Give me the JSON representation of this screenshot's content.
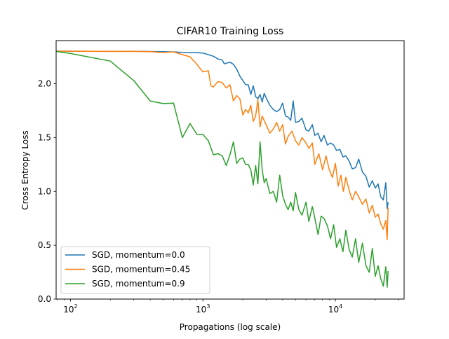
{
  "chart_data": {
    "type": "line",
    "title": "CIFAR10 Training Loss",
    "xlabel": "Propagations (log scale)",
    "ylabel": "Cross Entropy Loss",
    "x_scale": "log",
    "xlim": [
      78,
      33000
    ],
    "ylim": [
      0.0,
      2.4
    ],
    "x_ticks": [
      {
        "value": 100,
        "base": "10",
        "exp": "2"
      },
      {
        "value": 1000,
        "base": "10",
        "exp": "3"
      },
      {
        "value": 10000,
        "base": "10",
        "exp": "4"
      }
    ],
    "y_ticks": [
      {
        "value": 0.0,
        "label": "0.0"
      },
      {
        "value": 0.5,
        "label": "0.5"
      },
      {
        "value": 1.0,
        "label": "1.0"
      },
      {
        "value": 1.5,
        "label": "1.5"
      },
      {
        "value": 2.0,
        "label": "2.0"
      }
    ],
    "grid": false,
    "legend_position": "lower-left",
    "series": [
      {
        "name": "SGD, momentum=0.0",
        "color": "#1f77b4",
        "points": [
          [
            78,
            2.302
          ],
          [
            100,
            2.302
          ],
          [
            200,
            2.3
          ],
          [
            300,
            2.301
          ],
          [
            400,
            2.299
          ],
          [
            500,
            2.297
          ],
          [
            600,
            2.295
          ],
          [
            700,
            2.291
          ],
          [
            800,
            2.289
          ],
          [
            900,
            2.288
          ],
          [
            1000,
            2.285
          ],
          [
            1100,
            2.27
          ],
          [
            1200,
            2.255
          ],
          [
            1300,
            2.23
          ],
          [
            1400,
            2.22
          ],
          [
            1450,
            2.185
          ],
          [
            1500,
            2.19
          ],
          [
            1600,
            2.2
          ],
          [
            1700,
            2.18
          ],
          [
            1800,
            2.135
          ],
          [
            1900,
            2.07
          ],
          [
            2000,
            2.03
          ],
          [
            2100,
            1.99
          ],
          [
            2200,
            1.99
          ],
          [
            2300,
            1.9
          ],
          [
            2400,
            1.98
          ],
          [
            2500,
            1.88
          ],
          [
            2600,
            1.86
          ],
          [
            2700,
            1.9
          ],
          [
            2800,
            1.83
          ],
          [
            2900,
            1.91
          ],
          [
            3000,
            1.87
          ],
          [
            3200,
            1.8
          ],
          [
            3400,
            1.76
          ],
          [
            3600,
            1.74
          ],
          [
            3800,
            1.76
          ],
          [
            4000,
            1.82
          ],
          [
            4200,
            1.7
          ],
          [
            4400,
            1.69
          ],
          [
            4600,
            1.66
          ],
          [
            4800,
            1.84
          ],
          [
            5000,
            1.64
          ],
          [
            5300,
            1.65
          ],
          [
            5600,
            1.68
          ],
          [
            6000,
            1.57
          ],
          [
            6300,
            1.56
          ],
          [
            6700,
            1.62
          ],
          [
            7000,
            1.52
          ],
          [
            7400,
            1.54
          ],
          [
            7800,
            1.46
          ],
          [
            8200,
            1.52
          ],
          [
            8700,
            1.43
          ],
          [
            9200,
            1.45
          ],
          [
            9700,
            1.43
          ],
          [
            10200,
            1.38
          ],
          [
            10800,
            1.39
          ],
          [
            11400,
            1.32
          ],
          [
            12000,
            1.33
          ],
          [
            12700,
            1.28
          ],
          [
            13400,
            1.21
          ],
          [
            14200,
            1.22
          ],
          [
            15000,
            1.3
          ],
          [
            16000,
            1.18
          ],
          [
            17000,
            1.14
          ],
          [
            18000,
            1.04
          ],
          [
            19000,
            1.1
          ],
          [
            20000,
            1.03
          ],
          [
            21000,
            1.07
          ],
          [
            22000,
            0.95
          ],
          [
            23000,
            0.92
          ],
          [
            24000,
            1.08
          ],
          [
            24600,
            0.84
          ],
          [
            25000,
            0.9
          ]
        ]
      },
      {
        "name": "SGD, momentum=0.45",
        "color": "#ff7f0e",
        "points": [
          [
            78,
            2.302
          ],
          [
            100,
            2.302
          ],
          [
            200,
            2.3
          ],
          [
            300,
            2.3
          ],
          [
            400,
            2.297
          ],
          [
            500,
            2.29
          ],
          [
            600,
            2.295
          ],
          [
            700,
            2.27
          ],
          [
            800,
            2.25
          ],
          [
            900,
            2.18
          ],
          [
            1000,
            2.11
          ],
          [
            1100,
            2.12
          ],
          [
            1150,
            1.98
          ],
          [
            1200,
            1.97
          ],
          [
            1300,
            2.02
          ],
          [
            1400,
            2.01
          ],
          [
            1500,
            1.96
          ],
          [
            1600,
            1.99
          ],
          [
            1700,
            1.84
          ],
          [
            1800,
            1.89
          ],
          [
            1900,
            1.86
          ],
          [
            2000,
            1.71
          ],
          [
            2100,
            1.76
          ],
          [
            2200,
            1.73
          ],
          [
            2300,
            1.8
          ],
          [
            2400,
            1.65
          ],
          [
            2500,
            1.7
          ],
          [
            2600,
            1.85
          ],
          [
            2700,
            1.6
          ],
          [
            2800,
            1.7
          ],
          [
            3000,
            1.62
          ],
          [
            3200,
            1.54
          ],
          [
            3400,
            1.58
          ],
          [
            3600,
            1.64
          ],
          [
            3800,
            1.56
          ],
          [
            4000,
            1.62
          ],
          [
            4200,
            1.44
          ],
          [
            4400,
            1.51
          ],
          [
            4700,
            1.56
          ],
          [
            5000,
            1.47
          ],
          [
            5300,
            1.43
          ],
          [
            5600,
            1.5
          ],
          [
            6000,
            1.45
          ],
          [
            6300,
            1.4
          ],
          [
            6700,
            1.45
          ],
          [
            7000,
            1.25
          ],
          [
            7500,
            1.35
          ],
          [
            8000,
            1.2
          ],
          [
            8500,
            1.33
          ],
          [
            9000,
            1.2
          ],
          [
            9500,
            1.13
          ],
          [
            10000,
            1.26
          ],
          [
            10500,
            1.05
          ],
          [
            11000,
            1.15
          ],
          [
            11500,
            1.0
          ],
          [
            12000,
            1.13
          ],
          [
            12700,
            1.01
          ],
          [
            13400,
            0.92
          ],
          [
            14200,
            1.0
          ],
          [
            15000,
            0.95
          ],
          [
            16000,
            0.88
          ],
          [
            17000,
            0.93
          ],
          [
            18000,
            0.8
          ],
          [
            19000,
            0.87
          ],
          [
            20000,
            0.76
          ],
          [
            21000,
            0.79
          ],
          [
            22000,
            0.7
          ],
          [
            23000,
            0.65
          ],
          [
            24000,
            0.73
          ],
          [
            24600,
            0.55
          ],
          [
            25000,
            0.85
          ]
        ]
      },
      {
        "name": "SGD, momentum=0.9",
        "color": "#2ca02c",
        "points": [
          [
            78,
            2.3
          ],
          [
            100,
            2.28
          ],
          [
            200,
            2.21
          ],
          [
            300,
            2.03
          ],
          [
            400,
            1.84
          ],
          [
            500,
            1.815
          ],
          [
            600,
            1.82
          ],
          [
            700,
            1.5
          ],
          [
            800,
            1.63
          ],
          [
            900,
            1.53
          ],
          [
            1000,
            1.53
          ],
          [
            1100,
            1.47
          ],
          [
            1200,
            1.34
          ],
          [
            1300,
            1.35
          ],
          [
            1400,
            1.33
          ],
          [
            1500,
            1.24
          ],
          [
            1600,
            1.34
          ],
          [
            1700,
            1.46
          ],
          [
            1800,
            1.26
          ],
          [
            1900,
            1.3
          ],
          [
            2000,
            1.31
          ],
          [
            2100,
            1.25
          ],
          [
            2200,
            1.25
          ],
          [
            2300,
            1.2
          ],
          [
            2400,
            1.06
          ],
          [
            2500,
            1.24
          ],
          [
            2600,
            1.07
          ],
          [
            2700,
            1.46
          ],
          [
            2800,
            1.2
          ],
          [
            2900,
            1.08
          ],
          [
            3000,
            1.12
          ],
          [
            3200,
            0.98
          ],
          [
            3400,
            1.0
          ],
          [
            3600,
            0.9
          ],
          [
            3800,
            1.15
          ],
          [
            4000,
            0.96
          ],
          [
            4200,
            0.88
          ],
          [
            4400,
            0.83
          ],
          [
            4600,
            0.9
          ],
          [
            4800,
            0.82
          ],
          [
            5000,
            0.99
          ],
          [
            5300,
            0.83
          ],
          [
            5600,
            0.78
          ],
          [
            6000,
            0.9
          ],
          [
            6300,
            0.72
          ],
          [
            6700,
            0.86
          ],
          [
            7000,
            0.75
          ],
          [
            7400,
            0.6
          ],
          [
            7800,
            0.77
          ],
          [
            8200,
            0.75
          ],
          [
            8700,
            0.68
          ],
          [
            9200,
            0.56
          ],
          [
            9700,
            0.69
          ],
          [
            10200,
            0.48
          ],
          [
            10800,
            0.56
          ],
          [
            11400,
            0.44
          ],
          [
            12000,
            0.64
          ],
          [
            12700,
            0.46
          ],
          [
            13400,
            0.39
          ],
          [
            14200,
            0.56
          ],
          [
            15000,
            0.34
          ],
          [
            16000,
            0.52
          ],
          [
            17000,
            0.31
          ],
          [
            18000,
            0.25
          ],
          [
            19000,
            0.47
          ],
          [
            20000,
            0.21
          ],
          [
            21000,
            0.31
          ],
          [
            22000,
            0.19
          ],
          [
            23000,
            0.12
          ],
          [
            24000,
            0.3
          ],
          [
            24600,
            0.11
          ],
          [
            25000,
            0.26
          ]
        ]
      }
    ]
  }
}
